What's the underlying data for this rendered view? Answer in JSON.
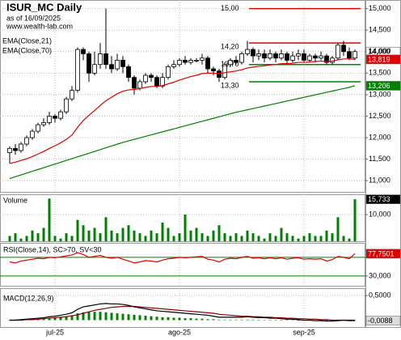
{
  "chart_data": [
    {
      "type": "candlestick",
      "title": "ISUR_MC Daily",
      "subtitle": "as of 16/09/2025",
      "source": "www.wealth-lab.com",
      "open": [
        11.65,
        11.75,
        11.7,
        11.85,
        12,
        12.15,
        12.3,
        12.35,
        12.5,
        12.45,
        12.6,
        12.9,
        13.1,
        14.05,
        13.95,
        13.5,
        13.7,
        13.95,
        13.7,
        13.6,
        13.8,
        13.65,
        13.4,
        13.15,
        13.3,
        13.45,
        13.4,
        13.2,
        13.4,
        13.65,
        13.7,
        13.8,
        13.75,
        13.8,
        13.8,
        13.85,
        13.6,
        13.55,
        13.4,
        13.7,
        13.8,
        13.75,
        13.95,
        14.05,
        13.9,
        13.95,
        13.85,
        13.95,
        13.85,
        13.95,
        13.8,
        13.9,
        13.95,
        13.8,
        13.9,
        13.85,
        13.9,
        13.75,
        13.85,
        14.15,
        14,
        13.85
      ],
      "high": [
        11.8,
        11.85,
        11.9,
        12.05,
        12.2,
        12.35,
        12.45,
        12.6,
        12.55,
        12.65,
        12.95,
        13.2,
        14.1,
        14.1,
        14,
        14,
        14.2,
        15,
        13.9,
        13.95,
        13.9,
        13.7,
        13.45,
        13.35,
        13.5,
        13.5,
        13.45,
        13.5,
        13.7,
        13.8,
        13.85,
        13.9,
        13.85,
        13.85,
        13.95,
        13.9,
        13.65,
        13.6,
        13.75,
        13.85,
        13.9,
        14,
        14.25,
        14.1,
        14.05,
        14.05,
        14.05,
        14,
        14.05,
        14,
        14,
        14.05,
        14.05,
        13.95,
        13.95,
        14,
        13.95,
        13.9,
        14.2,
        14.25,
        14.1,
        14.05
      ],
      "low": [
        11.4,
        11.6,
        11.65,
        11.8,
        11.95,
        12.1,
        12.25,
        12.3,
        12.35,
        12.4,
        12.55,
        12.85,
        13.05,
        13.8,
        13.3,
        13.45,
        13.6,
        13.6,
        13.5,
        13.55,
        13.5,
        13.3,
        13,
        13.1,
        13.25,
        13.3,
        13.15,
        13.15,
        13.35,
        13.6,
        13.65,
        13.7,
        13.7,
        13.75,
        13.7,
        13.5,
        13.45,
        13.3,
        13.35,
        13.65,
        13.7,
        13.7,
        13.9,
        13.75,
        13.8,
        13.75,
        13.8,
        13.75,
        13.8,
        13.7,
        13.75,
        13.8,
        13.75,
        13.75,
        13.75,
        13.8,
        13.7,
        13.7,
        13.8,
        13.9,
        13.8,
        13.8
      ],
      "close": [
        11.75,
        11.7,
        11.85,
        12,
        12.15,
        12.3,
        12.35,
        12.5,
        12.45,
        12.6,
        12.9,
        13.1,
        14.05,
        13.95,
        13.5,
        13.7,
        13.95,
        13.7,
        13.6,
        13.8,
        13.65,
        13.4,
        13.15,
        13.3,
        13.45,
        13.4,
        13.2,
        13.4,
        13.65,
        13.7,
        13.8,
        13.75,
        13.8,
        13.8,
        13.85,
        13.6,
        13.55,
        13.4,
        13.7,
        13.8,
        13.75,
        13.95,
        14.05,
        13.9,
        13.95,
        13.85,
        13.95,
        13.85,
        13.95,
        13.8,
        13.9,
        13.95,
        13.8,
        13.9,
        13.85,
        13.9,
        13.75,
        13.85,
        14.15,
        14,
        13.85,
        14
      ],
      "last_value_label": "14,000",
      "series": [
        {
          "name": "EMA(Close,21)",
          "color": "#e00000",
          "type": "line",
          "last_value_label": "13,819",
          "values": [
            11.4,
            11.43,
            11.47,
            11.51,
            11.56,
            11.62,
            11.68,
            11.75,
            11.81,
            11.88,
            11.96,
            12.06,
            12.24,
            12.4,
            12.52,
            12.63,
            12.75,
            12.86,
            12.94,
            13.02,
            13.08,
            13.11,
            13.12,
            13.14,
            13.17,
            13.19,
            13.19,
            13.21,
            13.25,
            13.29,
            13.34,
            13.38,
            13.42,
            13.45,
            13.49,
            13.5,
            13.5,
            13.49,
            13.51,
            13.53,
            13.55,
            13.58,
            13.62,
            13.64,
            13.66,
            13.67,
            13.69,
            13.7,
            13.72,
            13.72,
            13.73,
            13.75,
            13.75,
            13.76,
            13.77,
            13.78,
            13.77,
            13.78,
            13.81,
            13.83,
            13.83,
            13.819
          ]
        },
        {
          "name": "EMA(Close,70)",
          "color": "#008000",
          "type": "line",
          "last_value_label": "13,206",
          "values": [
            11.05,
            11.092,
            11.134,
            11.176,
            11.218,
            11.26,
            11.302,
            11.344,
            11.386,
            11.428,
            11.47,
            11.512,
            11.554,
            11.596,
            11.638,
            11.68,
            11.722,
            11.764,
            11.806,
            11.848,
            11.89,
            11.925,
            11.96,
            11.995,
            12.03,
            12.065,
            12.1,
            12.135,
            12.17,
            12.205,
            12.24,
            12.275,
            12.31,
            12.345,
            12.38,
            12.415,
            12.45,
            12.485,
            12.52,
            12.555,
            12.59,
            12.619,
            12.648,
            12.677,
            12.706,
            12.735,
            12.764,
            12.793,
            12.822,
            12.851,
            12.88,
            12.909,
            12.938,
            12.967,
            12.996,
            13.025,
            13.054,
            13.083,
            13.112,
            13.141,
            13.17,
            13.206
          ]
        }
      ],
      "levels": [
        {
          "value": 15,
          "label": "15,00",
          "color": "#e00000"
        },
        {
          "value": 14.2,
          "label": "14,20",
          "color": "#e00000"
        },
        {
          "value": 13.7,
          "label": "13,70",
          "color": "#008000"
        },
        {
          "value": 13.3,
          "label": "13,30",
          "color": "#008000"
        }
      ],
      "ylim": [
        10.74,
        15.2
      ],
      "yticks": [
        {
          "value": 15,
          "label": "15,000"
        },
        {
          "value": 14.5,
          "label": "14,500"
        },
        {
          "value": 14,
          "label": "14,000"
        },
        {
          "value": 13.5,
          "label": "13,500"
        },
        {
          "value": 13,
          "label": "13,000"
        },
        {
          "value": 12.5,
          "label": "12,500"
        },
        {
          "value": 12,
          "label": "12,000"
        },
        {
          "value": 11.5,
          "label": "11,500"
        },
        {
          "value": 11,
          "label": "11,000"
        }
      ],
      "grid": true
    },
    {
      "type": "bar",
      "title": "Volume",
      "color": "#008000",
      "last_value_label": "15,733",
      "values": [
        2,
        3,
        1,
        2,
        4,
        3,
        5,
        16,
        2,
        1,
        3,
        2,
        8,
        6,
        4,
        5,
        3,
        9,
        4,
        3,
        5,
        6,
        4,
        3,
        2,
        4,
        3,
        7,
        5,
        2,
        3,
        10,
        4,
        5,
        3,
        2,
        4,
        6,
        3,
        2,
        3,
        2,
        4,
        3,
        2,
        1,
        3,
        2,
        5,
        3,
        2,
        1,
        2,
        3,
        2,
        2,
        4,
        3,
        9,
        2,
        1,
        15.733
      ],
      "ylim": [
        0,
        17.6
      ],
      "yticks": [
        {
          "value": 10,
          "label": "10,000"
        }
      ],
      "grid": true
    },
    {
      "type": "line",
      "title": "RSI(Close,14), SC>70, SV<30",
      "series": [
        {
          "color": "#e00000",
          "type": "line",
          "last_value_label": "77,7501",
          "values": [
            60,
            58,
            62,
            64,
            66,
            68,
            67,
            70,
            69,
            71,
            73,
            75,
            80,
            76,
            70,
            72,
            74,
            70,
            68,
            70,
            66,
            62,
            58,
            60,
            63,
            62,
            60,
            64,
            67,
            68,
            70,
            69,
            70,
            71,
            72,
            66,
            64,
            60,
            66,
            68,
            67,
            70,
            72,
            68,
            69,
            67,
            69,
            67,
            69,
            66,
            68,
            69,
            66,
            67,
            66,
            67,
            62,
            65,
            72,
            70,
            67,
            77.7501
          ]
        }
      ],
      "levels": [
        {
          "value": 70,
          "color": "#008000"
        },
        {
          "value": 30,
          "color": "#008000"
        }
      ],
      "ylim": [
        9,
        101
      ],
      "yticks": [
        {
          "value": 30,
          "label": "30,000"
        }
      ],
      "grid": false
    },
    {
      "type": "line",
      "title": "MACD(12,26,9)",
      "categories": [
        null,
        null,
        null,
        null,
        null,
        null,
        null,
        null,
        "jul-25",
        null,
        null,
        null,
        null,
        null,
        null,
        null,
        null,
        null,
        null,
        null,
        null,
        null,
        null,
        null,
        null,
        null,
        null,
        null,
        null,
        null,
        "ago-25",
        null,
        null,
        null,
        null,
        null,
        null,
        null,
        null,
        null,
        null,
        null,
        null,
        null,
        null,
        null,
        null,
        null,
        null,
        null,
        null,
        null,
        "sep-25",
        null,
        null,
        null,
        null,
        null,
        null,
        null,
        null,
        null
      ],
      "series": [
        {
          "color": "#008000",
          "type": "bar",
          "values": [
            0,
            0,
            0.01,
            0.01,
            0.02,
            0.02,
            0.03,
            0.04,
            0.05,
            0.06,
            0.08,
            0.1,
            0.14,
            0.16,
            0.17,
            0.17,
            0.17,
            0.16,
            0.15,
            0.14,
            0.13,
            0.12,
            0.11,
            0.1,
            0.09,
            0.08,
            0.07,
            0.06,
            0.06,
            0.05,
            0.05,
            0.04,
            0.04,
            0.03,
            0.03,
            0.02,
            0.02,
            0.01,
            0.01,
            0.01,
            0.01,
            0.01,
            0.01,
            0.01,
            0.01,
            0,
            0,
            0,
            0,
            0,
            0,
            0,
            -0.01,
            -0.01,
            -0.01,
            -0.01,
            -0.01,
            -0.01,
            -0.01,
            -0.01,
            -0.01,
            -0.01
          ]
        },
        {
          "color": "#8b0000",
          "type": "line",
          "values": [
            0,
            0,
            0,
            0.01,
            0.01,
            0.02,
            0.03,
            0.04,
            0.05,
            0.06,
            0.07,
            0.09,
            0.11,
            0.14,
            0.17,
            0.2,
            0.22,
            0.24,
            0.26,
            0.27,
            0.28,
            0.28,
            0.28,
            0.27,
            0.26,
            0.25,
            0.24,
            0.23,
            0.22,
            0.21,
            0.2,
            0.19,
            0.18,
            0.17,
            0.16,
            0.15,
            0.14,
            0.12,
            0.11,
            0.1,
            0.09,
            0.08,
            0.08,
            0.07,
            0.07,
            0.06,
            0.06,
            0.05,
            0.05,
            0.04,
            0.04,
            0.03,
            0.03,
            0.02,
            0.02,
            0.01,
            0.01,
            0,
            0,
            0,
            0,
            0
          ]
        },
        {
          "color": "#000000",
          "type": "line",
          "last_value_label": "-0,0088",
          "values": [
            0,
            0,
            0.01,
            0.02,
            0.03,
            0.04,
            0.05,
            0.07,
            0.08,
            0.1,
            0.12,
            0.15,
            0.22,
            0.27,
            0.29,
            0.31,
            0.33,
            0.34,
            0.33,
            0.33,
            0.32,
            0.3,
            0.27,
            0.25,
            0.23,
            0.21,
            0.19,
            0.18,
            0.17,
            0.16,
            0.15,
            0.14,
            0.13,
            0.12,
            0.11,
            0.1,
            0.08,
            0.06,
            0.06,
            0.06,
            0.06,
            0.06,
            0.07,
            0.06,
            0.05,
            0.05,
            0.04,
            0.04,
            0.03,
            0.02,
            0.02,
            0.01,
            0,
            0,
            -0.01,
            -0.01,
            -0.02,
            -0.02,
            -0.01,
            0,
            -0.01,
            -0.0088
          ]
        }
      ],
      "ylim": [
        -0.14,
        0.65
      ],
      "yticks": [
        {
          "value": 0.5,
          "label": "0,5000"
        }
      ],
      "grid": true
    }
  ]
}
